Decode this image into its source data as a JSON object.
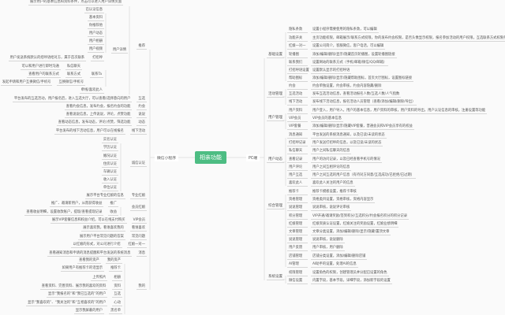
{
  "center": {
    "label": "相亲功能",
    "color": "#4dbd83"
  },
  "mini_program": {
    "label": "微信小程序",
    "nodes": [
      {
        "label": "",
        "desc": "展示用户的基本信息和资料条件，点击可以进入用户详情页面"
      },
      {
        "label": "已认证信息"
      },
      {
        "label": "基本资料"
      },
      {
        "label": "你推荐他"
      },
      {
        "label": "用户动态"
      },
      {
        "label": "用户相册"
      },
      {
        "label": "用户视频"
      },
      {
        "label": "用户详情"
      },
      {
        "label": "推荐"
      },
      {
        "label": "打招呼",
        "desc": "用户发送系统默认的招呼语给对方，属于首次联系"
      },
      {
        "label": "私信聊天",
        "desc": "可以和用户进行即时沟通"
      },
      {
        "label": "联系方式",
        "desc": "查看用户的联系方式"
      },
      {
        "label": "联系Ta"
      },
      {
        "label": "互换微信/手机号",
        "desc": "发起申请和用户互换微信/手机号"
      },
      {
        "label": "牵线/喜欢此人"
      },
      {
        "label": "互选",
        "desc": "平台发布的互选活动，用户报名后，进入互选大厅，可以查看/选择意向的用户"
      },
      {
        "label": "约会",
        "desc": "查看约会信息，发布约会，报名约会的功能"
      },
      {
        "label": "说说",
        "desc": "查看说说信息，上传说说，评论，点赞功能"
      },
      {
        "label": "动态",
        "desc": "查看动态信息，发布动态，评论/点赞，筛选功能"
      },
      {
        "label": "线下活动",
        "desc": "平台发布的线下活动信息，用户可以在线报名"
      },
      {
        "label": "实名认证"
      },
      {
        "label": "学历认证"
      },
      {
        "label": "婚况认证"
      },
      {
        "label": "住房认证"
      },
      {
        "label": "车辆认证"
      },
      {
        "label": "收入认证"
      },
      {
        "label": "单位认证"
      },
      {
        "label": "诚信认证"
      },
      {
        "label": "专业红娘",
        "desc": "展示平台专业红娘的信息"
      },
      {
        "label": "推广",
        "desc": "推广、邀请新用户，从而获得收益"
      },
      {
        "label": "收益",
        "desc": "查看收益明细，设置收款账户，提现/查看提现记录"
      },
      {
        "label": "会员红娘"
      },
      {
        "label": "VIP会员",
        "desc": "展示VIP套餐信息和权益介绍，可以在线支付购买"
      },
      {
        "label": "看谁喜欢",
        "desc": "展示喜欢我，看谁喜欢我的"
      },
      {
        "label": "常见问题",
        "desc": "展示用户平台常见问题的答案"
      },
      {
        "label": "红娘一对一",
        "desc": "以红娘的形式，对公司进行介绍"
      },
      {
        "label": "消息",
        "desc": "查看通知消息和申请的消息提醒和平台发送的系统消息"
      },
      {
        "label": "我的资产",
        "desc": "查看我的资产"
      },
      {
        "label": "推荐卡",
        "desc": "如果用户有推荐卡的话显示"
      },
      {
        "label": "相册",
        "desc": "上传照片"
      },
      {
        "label": "资料",
        "desc": "查看资料、完善资料、展示我的喜欢的资料"
      },
      {
        "label": "互选",
        "desc": "显示“我报名的”和“我已互选的”的用户"
      },
      {
        "label": "心动",
        "desc": "显示“我喜欢的”、“我关注的”和“互相喜欢的”的用户"
      },
      {
        "label": "黑名单",
        "desc": "显示我屏蔽的用户"
      },
      {
        "label": "我的"
      }
    ]
  },
  "pc": {
    "label": "PC端",
    "categories": [
      {
        "label": "基础设置",
        "items": [
          {
            "label": "隐私条款",
            "desc": "设置小程序需要使用的隐私条款，可以编辑"
          },
          {
            "label": "功能开关",
            "desc": "主页功能权限，邮箱展示/联系方式权限，你的发布约会权限，是否头像显示权限，报名参加活动的用户权限，互选联系方式权限条件限制的设置"
          },
          {
            "label": "红娘一对一",
            "desc": "设置公司简介，客服微信，客户电话，可以编辑"
          },
          {
            "label": "轮播图",
            "desc": "添加/编辑/删除/显示/隐藏首页轮播图，设置轮播图链接"
          },
          {
            "label": "联系我们",
            "desc": "设置网站的联系方式（手机/邮箱/微信/QQ/邮箱）"
          },
          {
            "label": "打招呼语设置",
            "desc": "设置默认显示的打招呼语"
          },
          {
            "label": "帮助图标",
            "desc": "添加/编辑/删除/显示/隐藏帮助图标，首页大厅图标，设置图标链接"
          }
        ]
      },
      {
        "label": "活动管理",
        "items": [
          {
            "label": "约会",
            "desc": "约会单独设置，约会审核，约会内容隐藏/删除"
          },
          {
            "label": "互选活动",
            "desc": "发布互选活动信息，查看活动报名人数/互选人数/人气指数"
          },
          {
            "label": "线下活动",
            "desc": "发布线下活动信息，报名活动人员管理（查看/添加/编辑/删除/导出）"
          }
        ]
      },
      {
        "label": "用户管理",
        "items": [
          {
            "label": "用户资料",
            "desc": "用户登入，用户导入，用户的基本信息，用户资料的审核，用户资料的导出，用户认证信息的审核，注册设置等功能"
          },
          {
            "label": "VIP会员",
            "desc": "VIP会员的基本信息"
          },
          {
            "label": "VIP套餐",
            "desc": "添加/编辑/删除/显示/隐藏VIP套餐，普通会员和VIP会员享有的权益"
          }
        ]
      },
      {
        "label": "用户动态",
        "items": [
          {
            "label": "消息通知",
            "desc": "平台发送的系统消息通知，以及已读/未读的状态"
          },
          {
            "label": "打招呼记录",
            "desc": "用户发送打招呼的信息，以及已读/未读的状态"
          },
          {
            "label": "私信聊天",
            "desc": "用户之间私信聊天的信息"
          },
          {
            "label": "查看记录",
            "desc": "用户的访问记录，以及已经查看手机号的情况"
          },
          {
            "label": "用户评论",
            "desc": "用户之间互相评论的信息"
          },
          {
            "label": "用户互选",
            "desc": "用户之间互选的用户信息（有待对方同意/互选成功/已拒绝/已过期）"
          },
          {
            "label": "喜欢此人",
            "desc": "喜欢此人关注的用户的信息"
          }
        ]
      },
      {
        "label": "综合管理",
        "items": [
          {
            "label": "推荐卡",
            "desc": "推荐卡模板设置，推荐卡审核"
          },
          {
            "label": "资格管理",
            "desc": "资格类目设置，资格审核，资格内容显示"
          },
          {
            "label": "说说管理",
            "desc": "说说审核，说说评论审核"
          },
          {
            "label": "积分管理",
            "desc": "VIP开通/邀请奖励/签到积分/互选积分/约会报名积分的积分记录"
          },
          {
            "label": "红娘管理",
            "desc": "红娘资质认证设置，红娘关注的奖励设置，红娘业绩明细"
          },
          {
            "label": "文章管理",
            "desc": "文章分类设置，添加/编辑/删除/显示/隐藏/置顶文章"
          },
          {
            "label": "说说管理",
            "desc": "说说审核，说说删除"
          },
          {
            "label": "用户反馈",
            "desc": "用户审核，用户删除"
          },
          {
            "label": "店铺管理",
            "desc": "店铺分类设置，添加/编辑/删除店铺"
          },
          {
            "label": "AI管理",
            "desc": "AI助手的设置，处理AI的信息"
          }
        ]
      },
      {
        "label": "系统设置",
        "items": [
          {
            "label": "权限管理",
            "desc": "设置角色的权限，创建管理员并分配已设置的角色"
          },
          {
            "label": "微信设置",
            "desc": "内置字段，基本字段，详细字段，添加新字段的设置"
          }
        ]
      }
    ]
  }
}
